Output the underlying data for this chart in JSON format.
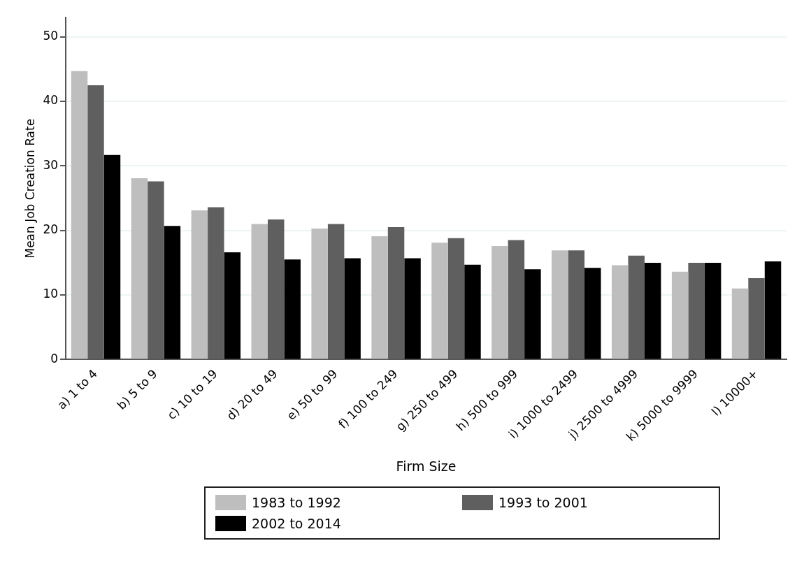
{
  "chart_data": {
    "type": "bar",
    "xlabel": "Firm Size",
    "ylabel": "Mean Job Creation Rate",
    "categories": [
      "a) 1 to 4",
      "b) 5 to 9",
      "c) 10 to 19",
      "d) 20 to 49",
      "e) 50 to 99",
      "f) 100 to 249",
      "g) 250 to 499",
      "h) 500 to 999",
      "i) 1000 to 2499",
      "j) 2500 to 4999",
      "k) 5000 to 9999",
      "l) 10000+"
    ],
    "series": [
      {
        "name": "1983 to 1992",
        "color": "#bebebe",
        "values": [
          44.7,
          28.1,
          23.1,
          21.0,
          20.3,
          19.1,
          18.1,
          17.6,
          16.9,
          14.6,
          13.6,
          11.0
        ]
      },
      {
        "name": "1993 to 2001",
        "color": "#5f5f5f",
        "values": [
          42.5,
          27.6,
          23.6,
          21.7,
          21.0,
          20.5,
          18.8,
          18.5,
          16.9,
          16.1,
          15.0,
          12.6
        ]
      },
      {
        "name": "2002 to 2014",
        "color": "#000000",
        "values": [
          31.7,
          20.7,
          16.6,
          15.5,
          15.7,
          15.7,
          14.7,
          14.0,
          14.2,
          15.0,
          15.0,
          15.2
        ]
      }
    ],
    "ylim": [
      0,
      53
    ],
    "yticks": [
      0,
      10,
      20,
      30,
      40,
      50
    ],
    "grid": "y",
    "legend": "bottom"
  }
}
